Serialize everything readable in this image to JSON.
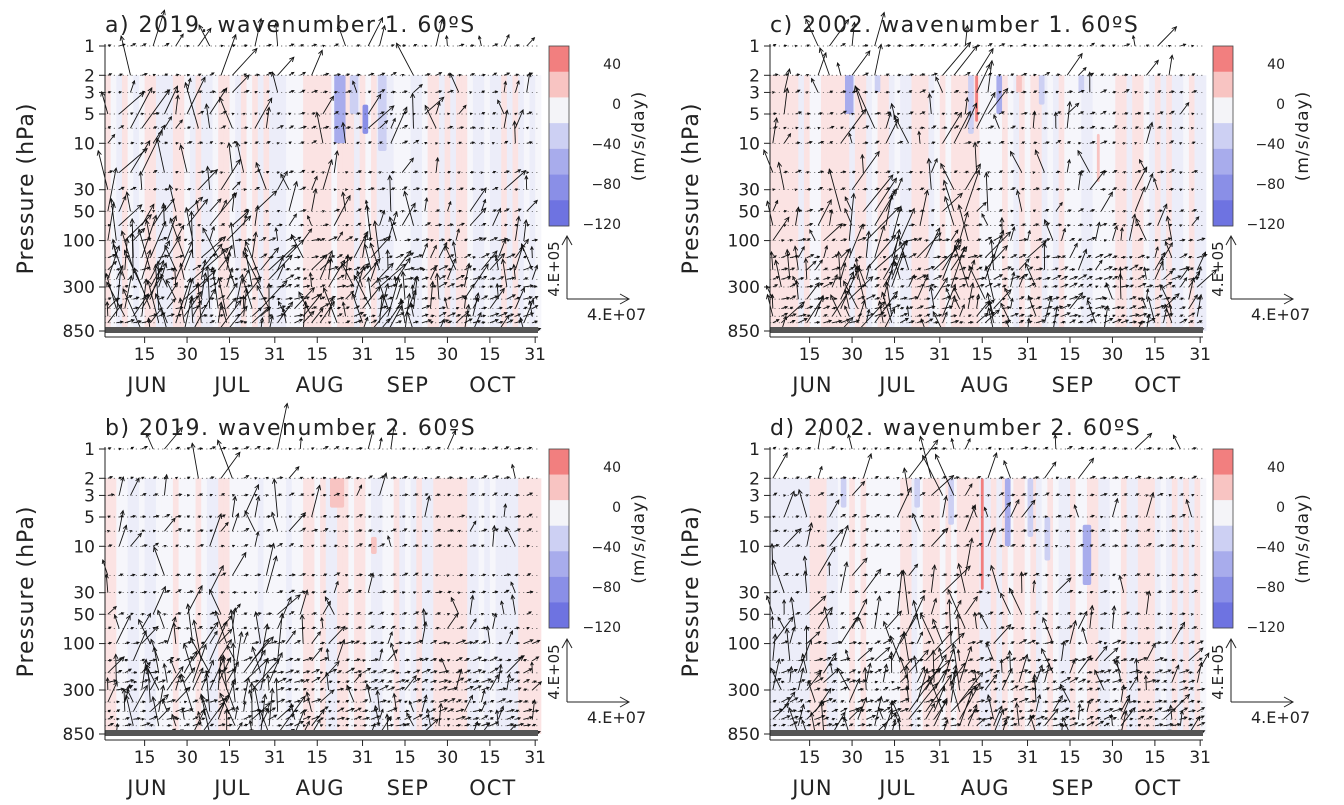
{
  "figure": {
    "y_axis_label": "Pressure (hPa)",
    "colorbar_label": "(m/s/day)",
    "colorbar_ticks": [
      "40",
      "0",
      "−40",
      "−80",
      "−120"
    ],
    "vector_ref_vertical": "4.E+05",
    "vector_ref_horizontal": "4.E+07"
  },
  "chart_data": [
    {
      "type": "heatmap",
      "title": "a) 2019. wavenumber 1. 60ºS",
      "ylabel": "Pressure (hPa)",
      "y_scale": "log",
      "y_ticks": [
        "1",
        "2",
        "3",
        "5",
        "10",
        "30",
        "50",
        "100",
        "300",
        "850"
      ],
      "x_ticks": [
        "15",
        "30",
        "15",
        "31",
        "15",
        "31",
        "15",
        "30",
        "15",
        "31"
      ],
      "months": [
        "JUN",
        "JUL",
        "AUG",
        "SEP",
        "OCT"
      ],
      "colorbar": {
        "label": "(m/s/day)",
        "range": [
          -120,
          40
        ]
      },
      "vector_scale": {
        "vertical": "4.E+05",
        "horizontal": "4.E+07"
      },
      "features": "EP-flux arrows strongest in June-July; blue (negative) shading near 2-10 hPa at end of August into September"
    },
    {
      "type": "heatmap",
      "title": "b) 2019. wavenumber 2. 60ºS",
      "ylabel": "Pressure (hPa)",
      "y_scale": "log",
      "y_ticks": [
        "1",
        "2",
        "3",
        "5",
        "10",
        "30",
        "50",
        "100",
        "300",
        "850"
      ],
      "x_ticks": [
        "15",
        "30",
        "15",
        "31",
        "15",
        "31",
        "15",
        "30",
        "15",
        "31"
      ],
      "months": [
        "JUN",
        "JUL",
        "AUG",
        "SEP",
        "OCT"
      ],
      "colorbar": {
        "label": "(m/s/day)",
        "range": [
          -120,
          40
        ]
      },
      "vector_scale": {
        "vertical": "4.E+05",
        "horizontal": "4.E+07"
      },
      "features": "Upward arrows concentrated in July to early August; weak shading, light red near 2 hPa in late August"
    },
    {
      "type": "heatmap",
      "title": "c) 2002. wavenumber 1. 60ºS",
      "ylabel": "Pressure (hPa)",
      "y_scale": "log",
      "y_ticks": [
        "1",
        "2",
        "3",
        "5",
        "10",
        "30",
        "50",
        "100",
        "300",
        "850"
      ],
      "x_ticks": [
        "15",
        "30",
        "15",
        "31",
        "15",
        "31",
        "15",
        "30",
        "15",
        "31"
      ],
      "months": [
        "JUN",
        "JUL",
        "AUG",
        "SEP",
        "OCT"
      ],
      "colorbar": {
        "label": "(m/s/day)",
        "range": [
          -120,
          40
        ]
      },
      "vector_scale": {
        "vertical": "4.E+05",
        "horizontal": "4.E+07"
      },
      "features": "Strong upward arrows in early July and mid August; alternating blue/red shading bands near 2-10 hPa"
    },
    {
      "type": "heatmap",
      "title": "d) 2002. wavenumber 2. 60ºS",
      "ylabel": "Pressure (hPa)",
      "y_scale": "log",
      "y_ticks": [
        "1",
        "2",
        "3",
        "5",
        "10",
        "30",
        "50",
        "100",
        "300",
        "850"
      ],
      "x_ticks": [
        "15",
        "30",
        "15",
        "31",
        "15",
        "31",
        "15",
        "30",
        "15",
        "31"
      ],
      "months": [
        "JUN",
        "JUL",
        "AUG",
        "SEP",
        "OCT"
      ],
      "colorbar": {
        "label": "(m/s/day)",
        "range": [
          -120,
          40
        ]
      },
      "vector_scale": {
        "vertical": "4.E+05",
        "horizontal": "4.E+07"
      },
      "features": "Large upward arrows late July to early August; blue shading around 5-10 hPa in late September"
    }
  ]
}
